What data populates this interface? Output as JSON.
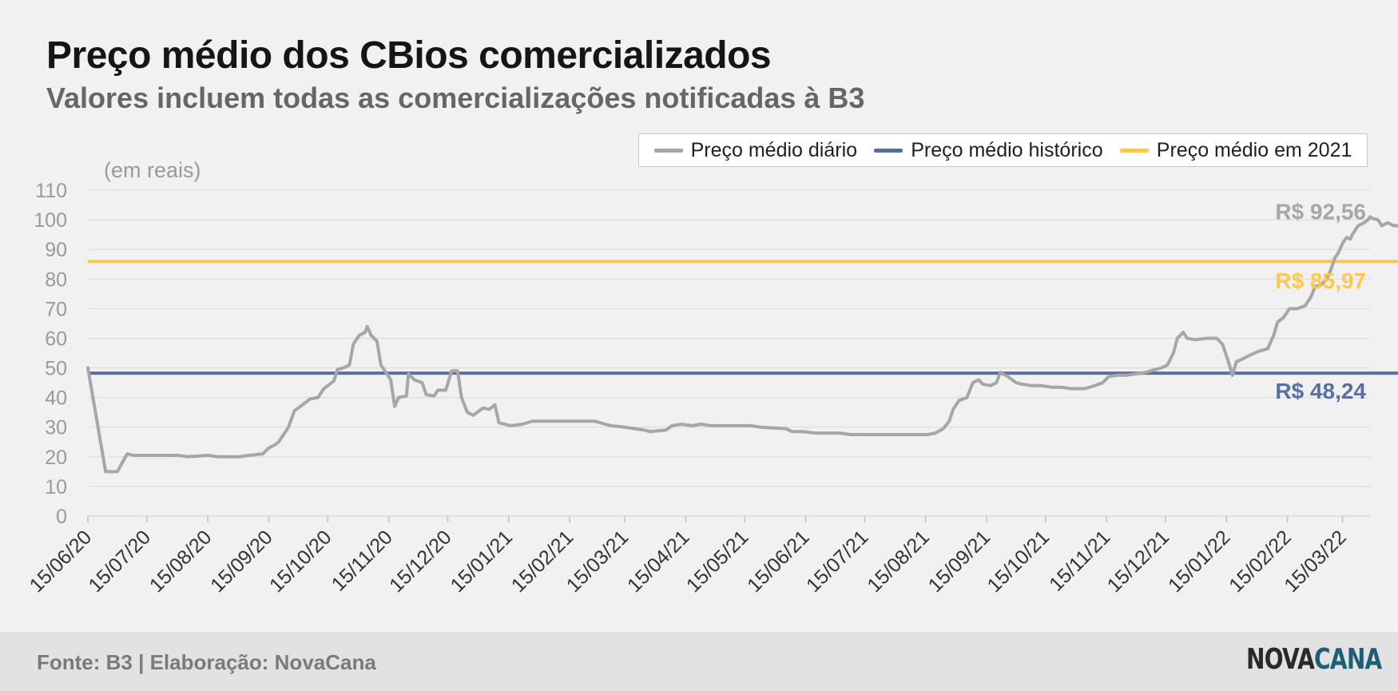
{
  "title": "Preço médio dos CBios comercializados",
  "subtitle": "Valores incluem todas as comercializações notificadas à B3",
  "footer": {
    "source": "Fonte: B3 | Elaboração: NovaCana"
  },
  "logo": {
    "part1": "NOVA",
    "part2": "CANA"
  },
  "colors": {
    "daily": "#a6a6a6",
    "historic": "#5a6f9d",
    "year2021": "#fec84f",
    "grid": "#d9d9d9",
    "axis_text": "#9a9a9a"
  },
  "chart_data": {
    "type": "line",
    "unit_label": "(em reais)",
    "ylim": [
      0,
      110
    ],
    "yticks": [
      0,
      10,
      20,
      30,
      40,
      50,
      60,
      70,
      80,
      90,
      100,
      110
    ],
    "grid": true,
    "legend_position": "top-right",
    "xlim": [
      "15/06/20",
      "29/03/22"
    ],
    "xtick_labels": [
      "15/06/20",
      "15/07/20",
      "15/08/20",
      "15/09/20",
      "15/10/20",
      "15/11/20",
      "15/12/20",
      "15/01/21",
      "15/02/21",
      "15/03/21",
      "15/04/21",
      "15/05/21",
      "15/06/21",
      "15/07/21",
      "15/08/21",
      "15/09/21",
      "15/10/21",
      "15/11/21",
      "15/12/21",
      "15/01/22",
      "15/02/22",
      "15/03/22"
    ],
    "series": [
      {
        "name": "Preço médio diário",
        "color": "#a6a6a6",
        "points": [
          [
            "15/06/20",
            50
          ],
          [
            "24/06/20",
            15
          ],
          [
            "30/06/20",
            15
          ],
          [
            "05/07/20",
            21
          ],
          [
            "08/07/20",
            20.5
          ],
          [
            "31/07/20",
            20.5
          ],
          [
            "05/08/20",
            20
          ],
          [
            "15/08/20",
            20.5
          ],
          [
            "20/08/20",
            20
          ],
          [
            "31/08/20",
            20
          ],
          [
            "05/09/20",
            20.5
          ],
          [
            "12/09/20",
            21
          ],
          [
            "15/09/20",
            23
          ],
          [
            "18/09/20",
            24
          ],
          [
            "20/09/20",
            25
          ],
          [
            "23/09/20",
            28
          ],
          [
            "25/09/20",
            30
          ],
          [
            "28/09/20",
            35.5
          ],
          [
            "03/10/20",
            38
          ],
          [
            "06/10/20",
            39.5
          ],
          [
            "10/10/20",
            40
          ],
          [
            "13/10/20",
            43
          ],
          [
            "18/10/20",
            45.5
          ],
          [
            "20/10/20",
            49.5
          ],
          [
            "23/10/20",
            50
          ],
          [
            "26/10/20",
            51
          ],
          [
            "28/10/20",
            58
          ],
          [
            "31/10/20",
            61
          ],
          [
            "03/11/20",
            62
          ],
          [
            "04/11/20",
            64
          ],
          [
            "06/11/20",
            61
          ],
          [
            "09/11/20",
            59
          ],
          [
            "11/11/20",
            51
          ],
          [
            "14/11/20",
            48
          ],
          [
            "16/11/20",
            46
          ],
          [
            "18/11/20",
            37
          ],
          [
            "20/11/20",
            40
          ],
          [
            "24/11/20",
            40.5
          ],
          [
            "25/11/20",
            48
          ],
          [
            "28/11/20",
            46
          ],
          [
            "02/12/20",
            45
          ],
          [
            "04/12/20",
            41
          ],
          [
            "08/12/20",
            40.5
          ],
          [
            "10/12/20",
            42.5
          ],
          [
            "14/12/20",
            42.5
          ],
          [
            "17/12/20",
            49
          ],
          [
            "20/12/20",
            49
          ],
          [
            "22/12/20",
            40
          ],
          [
            "25/12/20",
            35
          ],
          [
            "28/12/20",
            34
          ],
          [
            "02/01/21",
            36.5
          ],
          [
            "05/01/21",
            36
          ],
          [
            "08/01/21",
            37.5
          ],
          [
            "10/01/21",
            31.5
          ],
          [
            "13/01/21",
            31
          ],
          [
            "16/01/21",
            30.5
          ],
          [
            "22/01/21",
            31
          ],
          [
            "27/01/21",
            32
          ],
          [
            "02/02/21",
            32
          ],
          [
            "05/02/21",
            32
          ],
          [
            "28/02/21",
            32
          ],
          [
            "05/03/21",
            31
          ],
          [
            "08/03/21",
            30.5
          ],
          [
            "15/03/21",
            30
          ],
          [
            "20/03/21",
            29.5
          ],
          [
            "25/03/21",
            29
          ],
          [
            "28/03/21",
            28.5
          ],
          [
            "05/04/21",
            29
          ],
          [
            "08/04/21",
            30.5
          ],
          [
            "13/04/21",
            31
          ],
          [
            "18/04/21",
            30.5
          ],
          [
            "23/04/21",
            31
          ],
          [
            "28/04/21",
            30.5
          ],
          [
            "08/05/21",
            30.5
          ],
          [
            "18/05/21",
            30.5
          ],
          [
            "23/05/21",
            30
          ],
          [
            "05/06/21",
            29.5
          ],
          [
            "08/06/21",
            28.5
          ],
          [
            "13/06/21",
            28.5
          ],
          [
            "20/06/21",
            28
          ],
          [
            "02/07/21",
            28
          ],
          [
            "08/07/21",
            27.5
          ],
          [
            "15/07/21",
            27.5
          ],
          [
            "10/08/21",
            27.5
          ],
          [
            "16/08/21",
            27.5
          ],
          [
            "20/08/21",
            28
          ],
          [
            "24/08/21",
            29.5
          ],
          [
            "27/08/21",
            32
          ],
          [
            "29/08/21",
            36
          ],
          [
            "01/09/21",
            39
          ],
          [
            "05/09/21",
            40
          ],
          [
            "08/09/21",
            45
          ],
          [
            "11/09/21",
            46
          ],
          [
            "13/09/21",
            44.5
          ],
          [
            "17/09/21",
            44
          ],
          [
            "20/09/21",
            45
          ],
          [
            "22/09/21",
            48.5
          ],
          [
            "26/09/21",
            47
          ],
          [
            "30/09/21",
            45
          ],
          [
            "03/10/21",
            44.5
          ],
          [
            "08/10/21",
            44
          ],
          [
            "13/10/21",
            44
          ],
          [
            "18/10/21",
            43.5
          ],
          [
            "23/10/21",
            43.5
          ],
          [
            "28/10/21",
            43
          ],
          [
            "04/11/21",
            43
          ],
          [
            "09/11/21",
            44
          ],
          [
            "13/11/21",
            45
          ],
          [
            "16/11/21",
            47
          ],
          [
            "20/11/21",
            47.5
          ],
          [
            "25/11/21",
            47.5
          ],
          [
            "30/11/21",
            48
          ],
          [
            "05/12/21",
            48.5
          ],
          [
            "10/12/21",
            49.5
          ],
          [
            "13/12/21",
            50
          ],
          [
            "16/12/21",
            51
          ],
          [
            "19/12/21",
            55
          ],
          [
            "21/12/21",
            60
          ],
          [
            "24/12/21",
            62
          ],
          [
            "26/12/21",
            60
          ],
          [
            "30/12/21",
            59.5
          ],
          [
            "05/01/22",
            60
          ],
          [
            "10/01/22",
            60
          ],
          [
            "13/01/22",
            58
          ],
          [
            "16/01/22",
            52
          ],
          [
            "18/01/22",
            47.5
          ],
          [
            "20/01/22",
            52
          ],
          [
            "23/01/22",
            53
          ],
          [
            "26/01/22",
            54
          ],
          [
            "31/01/22",
            55.5
          ],
          [
            "05/02/22",
            56.5
          ],
          [
            "08/02/22",
            61
          ],
          [
            "10/02/22",
            65.5
          ],
          [
            "13/02/22",
            67
          ],
          [
            "16/02/22",
            70
          ],
          [
            "20/02/22",
            70
          ],
          [
            "24/02/22",
            71
          ],
          [
            "27/02/22",
            74
          ],
          [
            "01/03/22",
            77.5
          ],
          [
            "04/03/22",
            78
          ],
          [
            "07/03/22",
            80
          ],
          [
            "09/03/22",
            83
          ],
          [
            "11/03/22",
            87
          ],
          [
            "13/03/22",
            89
          ],
          [
            "15/03/22",
            92
          ],
          [
            "17/03/22",
            94
          ],
          [
            "19/03/22",
            93.5
          ],
          [
            "20/03/22",
            95
          ],
          [
            "23/03/22",
            98
          ],
          [
            "26/03/22",
            99
          ],
          [
            "28/03/22",
            100
          ],
          [
            "29/03/22",
            101
          ],
          [
            "30/03/22",
            100.5
          ],
          [
            "02/04/22",
            100
          ],
          [
            "04/04/22",
            98
          ],
          [
            "07/04/22",
            99
          ],
          [
            "10/04/22",
            98
          ],
          [
            "14/04/22",
            98
          ],
          [
            "20/04/22",
            99.5
          ],
          [
            "23/04/22",
            98
          ],
          [
            "26/04/22",
            97
          ],
          [
            "28/04/22",
            95.5
          ],
          [
            "30/04/22",
            92.56
          ]
        ]
      },
      {
        "name": "Preço médio histórico",
        "color": "#5a6f9d",
        "value": 48.24
      },
      {
        "name": "Preço médio em 2021",
        "color": "#fec84f",
        "value": 85.97
      }
    ],
    "annotations": [
      {
        "text": "R$ 92,56",
        "series": "Preço médio diário",
        "value": 92.56,
        "color": "#a6a6a6"
      },
      {
        "text": "R$ 85,97",
        "series": "Preço médio em 2021",
        "value": 85.97,
        "color": "#fec84f"
      },
      {
        "text": "R$ 48,24",
        "series": "Preço médio histórico",
        "value": 48.24,
        "color": "#5a6f9d"
      }
    ]
  }
}
